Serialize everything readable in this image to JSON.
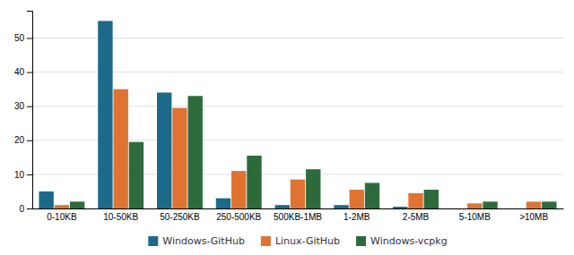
{
  "chart_data": {
    "type": "bar",
    "categories": [
      "0-10KB",
      "10-50KB",
      "50-250KB",
      "250-500KB",
      "500KB-1MB",
      "1-2MB",
      "2-5MB",
      "5-10MB",
      ">10MB"
    ],
    "series": [
      {
        "name": "Windows-GitHub",
        "color": "#1b6a8a",
        "values": [
          5,
          55,
          34,
          3,
          1,
          1,
          0.5,
          0,
          0
        ]
      },
      {
        "name": "Linux-GitHub",
        "color": "#e07332",
        "values": [
          1,
          35,
          29.5,
          11,
          8.5,
          5.5,
          4.5,
          1.5,
          2
        ]
      },
      {
        "name": "Windows-vcpkg",
        "color": "#2d6b3c",
        "values": [
          2,
          19.5,
          33,
          15.5,
          11.5,
          7.5,
          5.5,
          2,
          2
        ]
      }
    ],
    "ylim": [
      0,
      58
    ],
    "yticks": [
      0,
      10,
      20,
      30,
      40,
      50
    ],
    "grid": true,
    "legend": "bottom"
  }
}
